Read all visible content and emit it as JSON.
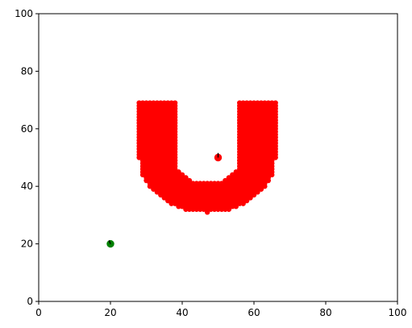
{
  "chart_data": {
    "type": "scatter",
    "title": "",
    "xlabel": "",
    "ylabel": "",
    "xlim": [
      0,
      100
    ],
    "ylim": [
      0,
      100
    ],
    "grid": false,
    "x_ticks": [
      "0",
      "20",
      "40",
      "60",
      "80",
      "100"
    ],
    "y_ticks": [
      "0",
      "20",
      "40",
      "60",
      "80",
      "100"
    ],
    "series": [
      {
        "color": "#ff0000",
        "shape": "U",
        "center": [
          47,
          50
        ],
        "outer_radius": 19,
        "inner_radius": 9,
        "arm_top": 69,
        "points_note": "dense red obstacle cloud"
      },
      {
        "color": "#ff0000",
        "points": [
          [
            50,
            50
          ]
        ]
      },
      {
        "color": "#008000",
        "points": [
          [
            20,
            20
          ]
        ]
      }
    ],
    "annotations": [
      {
        "x": 50,
        "y": 50,
        "dx": 0,
        "dy": 1.6,
        "color": "#000000"
      },
      {
        "x": 20,
        "y": 20,
        "dx": -0.4,
        "dy": 1.2,
        "color": "#000000"
      }
    ]
  }
}
